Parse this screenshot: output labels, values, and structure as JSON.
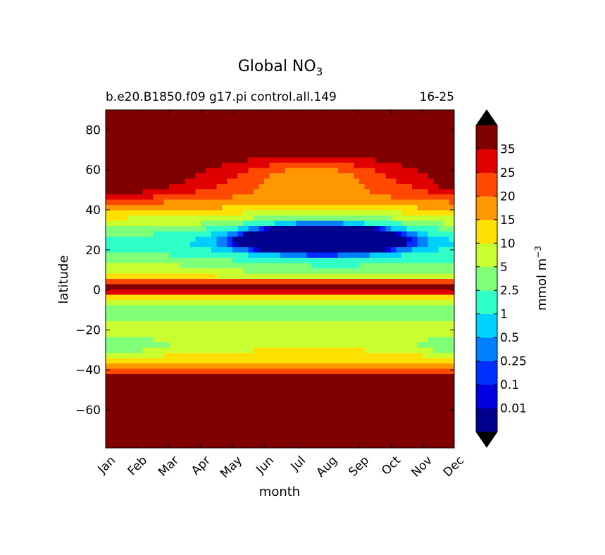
{
  "chart_data": {
    "type": "contourf",
    "title": "Global NO",
    "title_subscript": "3",
    "subtitle_left": "b.e20.B1850.f09 g17.pi control.all.149",
    "subtitle_right": "16-25",
    "xlabel": "month",
    "ylabel": "latitude",
    "colorbar_label": "mmol m",
    "colorbar_label_superscript": "−3",
    "months": [
      "Jan",
      "Feb",
      "Mar",
      "Apr",
      "May",
      "Jun",
      "Jul",
      "Aug",
      "Sep",
      "Oct",
      "Nov",
      "Dec"
    ],
    "y_ticks": [
      {
        "value": 80,
        "label": "80"
      },
      {
        "value": 60,
        "label": "60"
      },
      {
        "value": 40,
        "label": "40"
      },
      {
        "value": 20,
        "label": "20"
      },
      {
        "value": 0,
        "label": "0"
      },
      {
        "value": -20,
        "label": "−20"
      },
      {
        "value": -40,
        "label": "−40"
      },
      {
        "value": -60,
        "label": "−60"
      }
    ],
    "ylim": [
      -79,
      90
    ],
    "xlim": [
      0,
      11
    ],
    "levels": [
      {
        "value": 0.01,
        "label": "0.01"
      },
      {
        "value": 0.1,
        "label": "0.1"
      },
      {
        "value": 0.25,
        "label": "0.25"
      },
      {
        "value": 0.5,
        "label": "0.5"
      },
      {
        "value": 1,
        "label": "1"
      },
      {
        "value": 2.5,
        "label": "2.5"
      },
      {
        "value": 5,
        "label": "5"
      },
      {
        "value": 10,
        "label": "10"
      },
      {
        "value": 15,
        "label": "15"
      },
      {
        "value": 20,
        "label": "20"
      },
      {
        "value": 25,
        "label": "25"
      },
      {
        "value": 35,
        "label": "35"
      }
    ],
    "colors": [
      "#00008f",
      "#0000e0",
      "#0030ff",
      "#0080ff",
      "#00d0ff",
      "#30ffc8",
      "#80ff78",
      "#c8ff30",
      "#ffe000",
      "#ff9800",
      "#ff4800",
      "#e00000",
      "#800000"
    ],
    "extend_under_color": "#000000",
    "extend_over_color": "#000000"
  }
}
